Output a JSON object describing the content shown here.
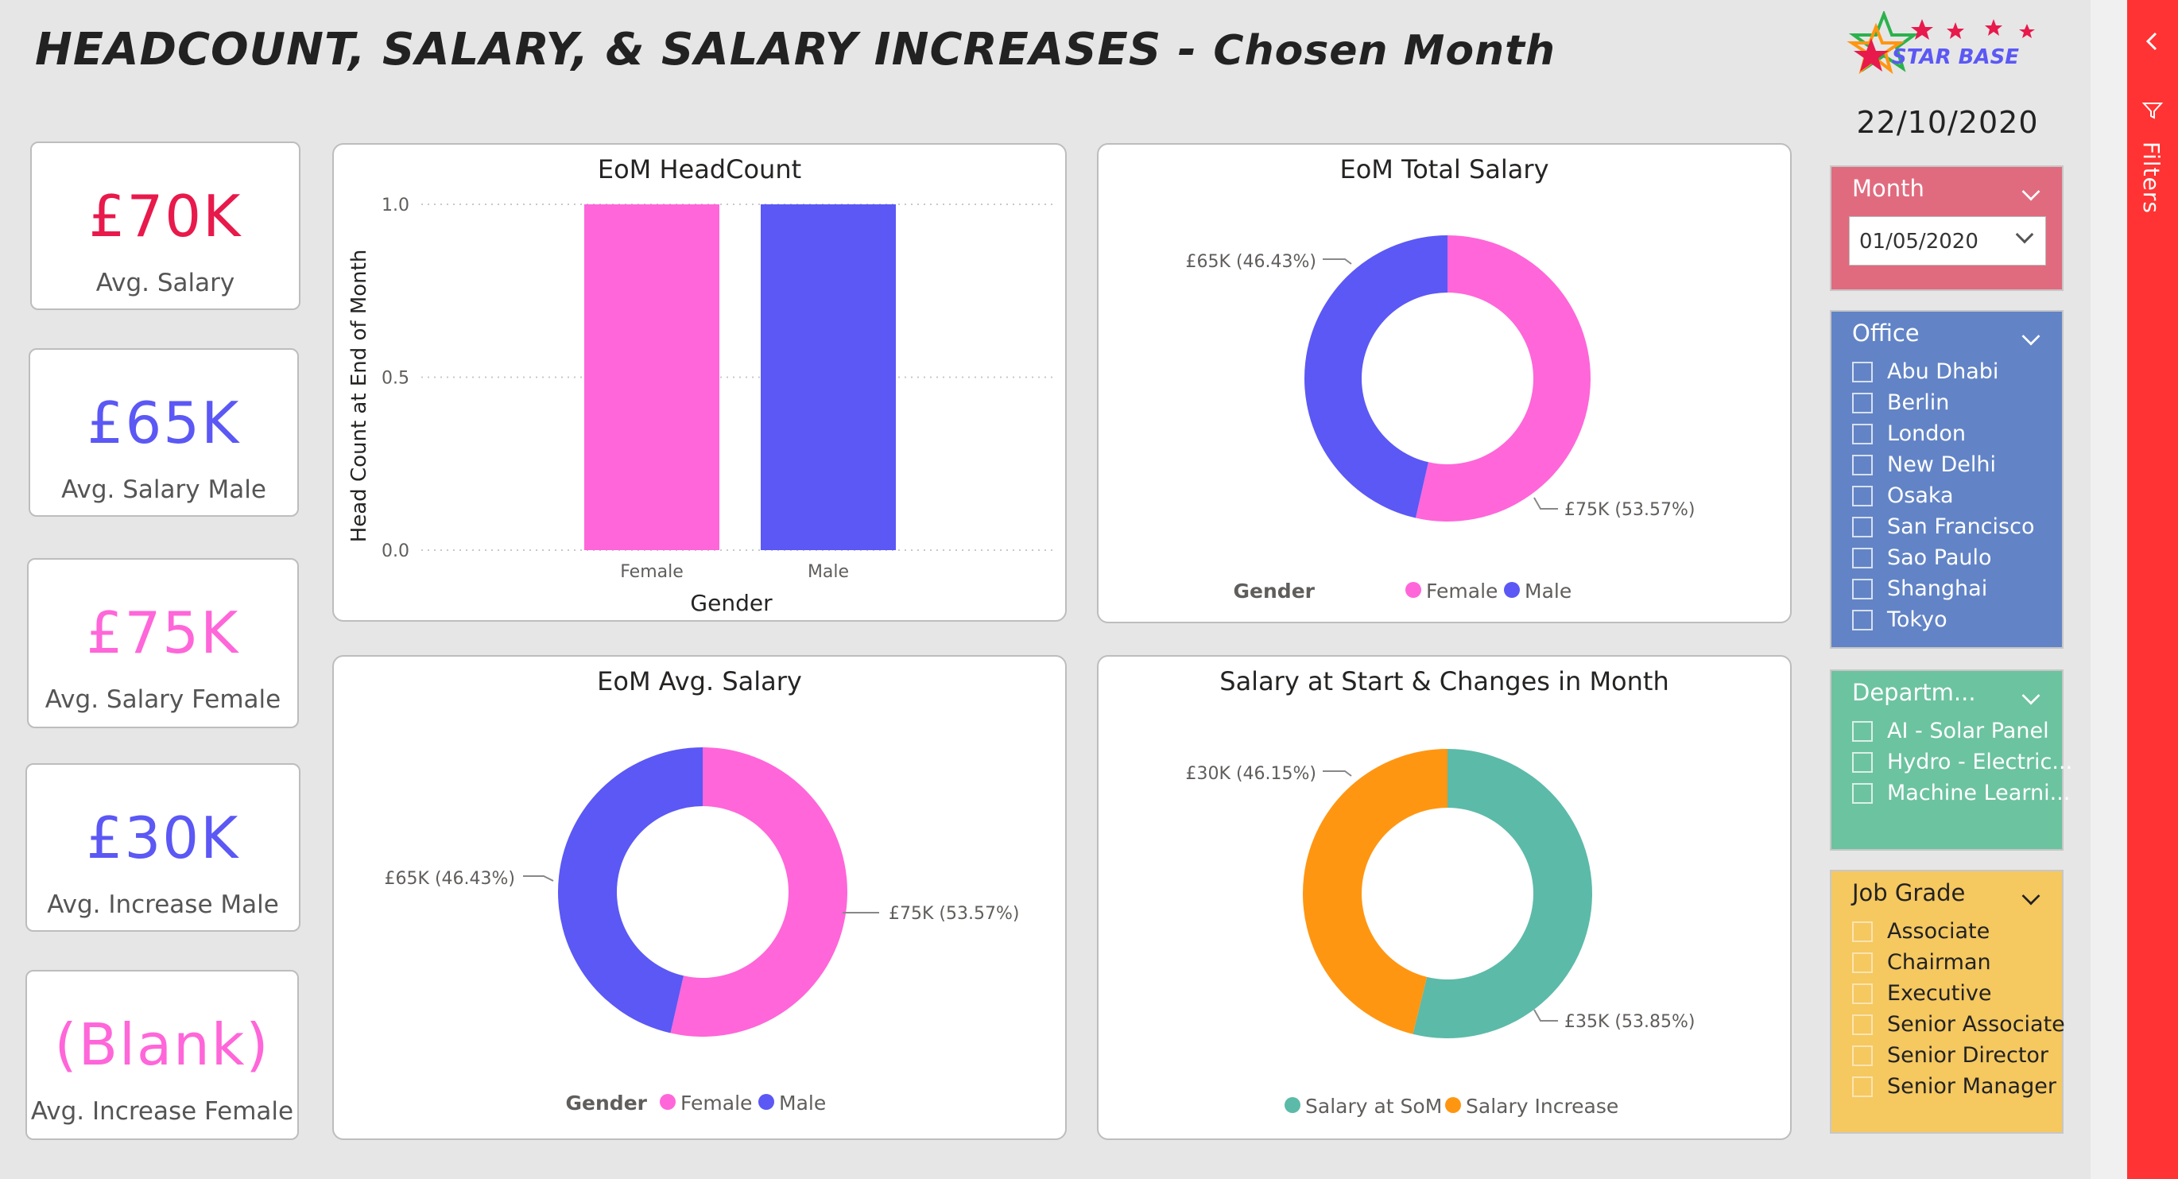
{
  "header": {
    "title_main": "HEADCOUNT, SALARY, & SALARY INCREASES -",
    "title_sub": "Chosen Month",
    "logo_text": "STAR BASE",
    "date": "22/10/2020"
  },
  "kpis": [
    {
      "value": "£70K",
      "label": "Avg. Salary",
      "color": "#e8194b"
    },
    {
      "value": "£65K",
      "label": "Avg. Salary Male",
      "color": "#5b58f5"
    },
    {
      "value": "£75K",
      "label": "Avg. Salary Female",
      "color": "#ff66d9"
    },
    {
      "value": "£30K",
      "label": "Avg. Increase Male",
      "color": "#5b58f5"
    },
    {
      "value": "(Blank)",
      "label": "Avg. Increase Female",
      "color": "#ff66d9"
    }
  ],
  "colors": {
    "female": "#ff66d9",
    "male": "#5b58f5",
    "salary_som": "#5cbaa8",
    "salary_increase": "#ff9612",
    "month_slicer": "#e06b7f",
    "office_slicer": "#6284c6",
    "dept_slicer": "#6cc3a0",
    "job_slicer": "#f5c860",
    "filters_pane": "#ff3333"
  },
  "charts": {
    "headcount": {
      "title": "EoM HeadCount",
      "xlabel": "Gender",
      "ylabel": "Head Count at End of Month",
      "yticks": [
        "1.0",
        "0.5",
        "0.0"
      ],
      "categories": [
        "Female",
        "Male"
      ]
    },
    "total_salary": {
      "title": "EoM Total Salary",
      "label_male": "£65K (46.43%)",
      "label_female": "£75K (53.57%)",
      "legend_title": "Gender",
      "legend_female": "Female",
      "legend_male": "Male"
    },
    "avg_salary": {
      "title": "EoM Avg. Salary",
      "label_male": "£65K (46.43%)",
      "label_female": "£75K (53.57%)",
      "legend_title": "Gender",
      "legend_female": "Female",
      "legend_male": "Male"
    },
    "salary_changes": {
      "title": "Salary at Start & Changes in Month",
      "label_increase": "£30K (46.15%)",
      "label_som": "£35K (53.85%)",
      "legend_som": "Salary at SoM",
      "legend_increase": "Salary Increase"
    }
  },
  "chart_data": [
    {
      "type": "bar",
      "title": "EoM HeadCount",
      "categories": [
        "Female",
        "Male"
      ],
      "values": [
        1,
        1
      ],
      "xlabel": "Gender",
      "ylabel": "Head Count at End of Month",
      "ylim": [
        0,
        1
      ],
      "grid": true
    },
    {
      "type": "pie",
      "title": "EoM Total Salary",
      "categories": [
        "Female",
        "Male"
      ],
      "values": [
        75000,
        65000
      ],
      "percent": [
        53.57,
        46.43
      ]
    },
    {
      "type": "pie",
      "title": "EoM Avg. Salary",
      "categories": [
        "Female",
        "Male"
      ],
      "values": [
        75000,
        65000
      ],
      "percent": [
        53.57,
        46.43
      ]
    },
    {
      "type": "pie",
      "title": "Salary at Start & Changes in Month",
      "categories": [
        "Salary at SoM",
        "Salary Increase"
      ],
      "values": [
        35000,
        30000
      ],
      "percent": [
        53.85,
        46.15
      ]
    }
  ],
  "slicers": {
    "month": {
      "title": "Month",
      "value": "01/05/2020"
    },
    "office": {
      "title": "Office",
      "items": [
        "Abu Dhabi",
        "Berlin",
        "London",
        "New Delhi",
        "Osaka",
        "San Francisco",
        "Sao Paulo",
        "Shanghai",
        "Tokyo"
      ]
    },
    "department": {
      "title": "Departm...",
      "items": [
        "AI - Solar Panel",
        "Hydro - Electric...",
        "Machine Learni..."
      ]
    },
    "job_grade": {
      "title": "Job Grade",
      "items": [
        "Associate",
        "Chairman",
        "Executive",
        "Senior Associate",
        "Senior Director",
        "Senior Manager"
      ]
    }
  },
  "filters_pane": {
    "label": "Filters",
    "collapse_icon": "chevron-left-icon",
    "filter_icon": "funnel-icon"
  }
}
